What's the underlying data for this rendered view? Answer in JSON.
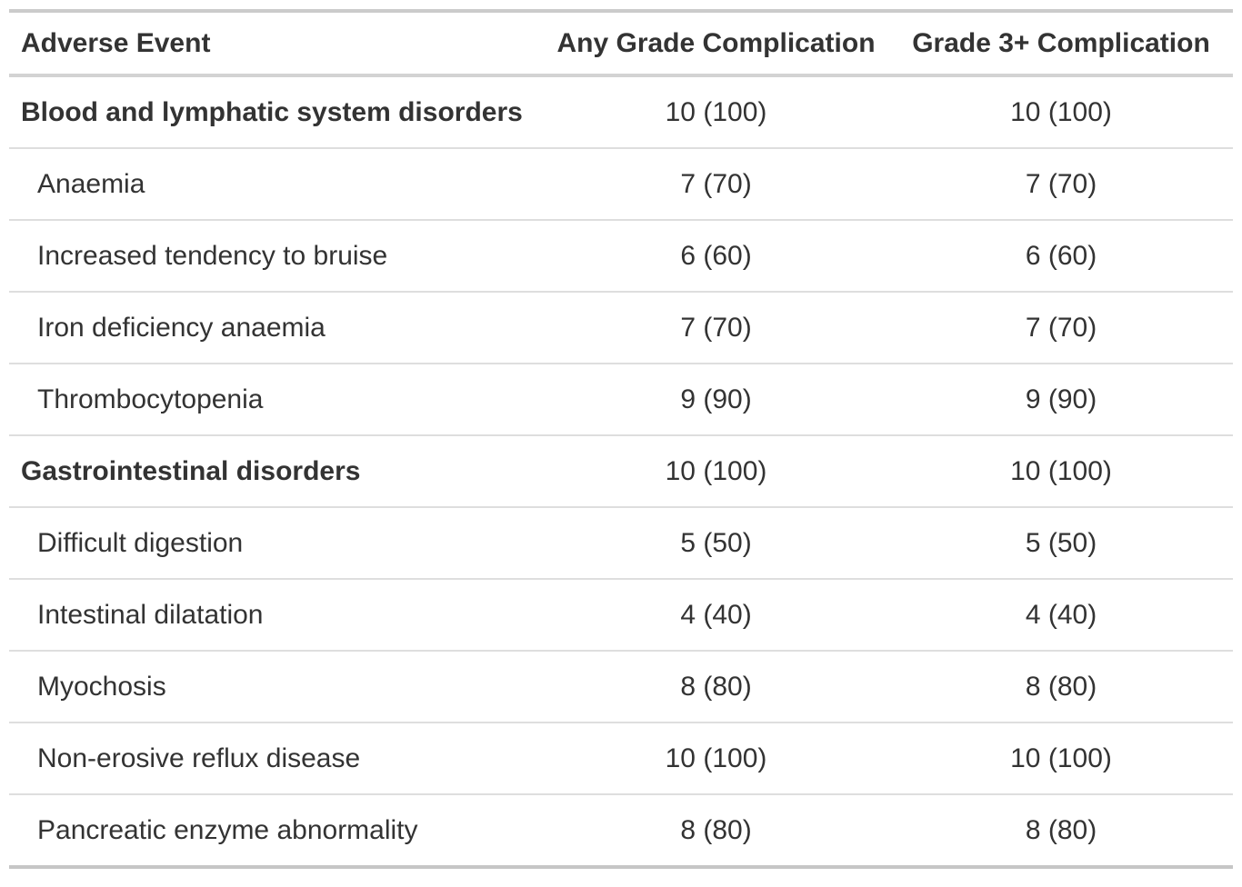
{
  "colors": {
    "background": "#ffffff",
    "text": "#333333",
    "border_top": "#cbcbcb",
    "border_bottom": "#c6c6c6",
    "border_header": "#d3d3d3",
    "border_row_divider": "#dedede"
  },
  "table": {
    "columns": [
      {
        "label": "Adverse Event",
        "align": "left"
      },
      {
        "label": "Any Grade Complication",
        "align": "center"
      },
      {
        "label": "Grade 3+ Complication",
        "align": "center"
      }
    ],
    "rows": [
      {
        "label": "Blood and lymphatic system disorders",
        "is_group": true,
        "any_grade": "10 (100)",
        "grade_3_plus": "10 (100)"
      },
      {
        "label": "Anaemia",
        "is_group": false,
        "any_grade": "7 (70)",
        "grade_3_plus": "7 (70)"
      },
      {
        "label": "Increased tendency to bruise",
        "is_group": false,
        "any_grade": "6 (60)",
        "grade_3_plus": "6 (60)"
      },
      {
        "label": "Iron deficiency anaemia",
        "is_group": false,
        "any_grade": "7 (70)",
        "grade_3_plus": "7 (70)"
      },
      {
        "label": "Thrombocytopenia",
        "is_group": false,
        "any_grade": "9 (90)",
        "grade_3_plus": "9 (90)"
      },
      {
        "label": "Gastrointestinal disorders",
        "is_group": true,
        "any_grade": "10 (100)",
        "grade_3_plus": "10 (100)"
      },
      {
        "label": "Difficult digestion",
        "is_group": false,
        "any_grade": "5 (50)",
        "grade_3_plus": "5 (50)"
      },
      {
        "label": "Intestinal dilatation",
        "is_group": false,
        "any_grade": "4 (40)",
        "grade_3_plus": "4 (40)"
      },
      {
        "label": "Myochosis",
        "is_group": false,
        "any_grade": "8 (80)",
        "grade_3_plus": "8 (80)"
      },
      {
        "label": "Non-erosive reflux disease",
        "is_group": false,
        "any_grade": "10 (100)",
        "grade_3_plus": "10 (100)"
      },
      {
        "label": "Pancreatic enzyme abnormality",
        "is_group": false,
        "any_grade": "8 (80)",
        "grade_3_plus": "8 (80)"
      }
    ]
  },
  "chart_data": {
    "type": "table",
    "columns": [
      "Adverse Event",
      "Any Grade Complication",
      "Grade 3+ Complication"
    ],
    "rows": [
      [
        "Blood and lymphatic system disorders",
        "10 (100)",
        "10 (100)"
      ],
      [
        "Anaemia",
        "7 (70)",
        "7 (70)"
      ],
      [
        "Increased tendency to bruise",
        "6 (60)",
        "6 (60)"
      ],
      [
        "Iron deficiency anaemia",
        "7 (70)",
        "7 (70)"
      ],
      [
        "Thrombocytopenia",
        "9 (90)",
        "9 (90)"
      ],
      [
        "Gastrointestinal disorders",
        "10 (100)",
        "10 (100)"
      ],
      [
        "Difficult digestion",
        "5 (50)",
        "5 (50)"
      ],
      [
        "Intestinal dilatation",
        "4 (40)",
        "4 (40)"
      ],
      [
        "Myochosis",
        "8 (80)",
        "8 (80)"
      ],
      [
        "Non-erosive reflux disease",
        "10 (100)",
        "10 (100)"
      ],
      [
        "Pancreatic enzyme abnormality",
        "8 (80)",
        "8 (80)"
      ]
    ],
    "group_row_indices": [
      0,
      5
    ],
    "value_format": "n (%)"
  }
}
